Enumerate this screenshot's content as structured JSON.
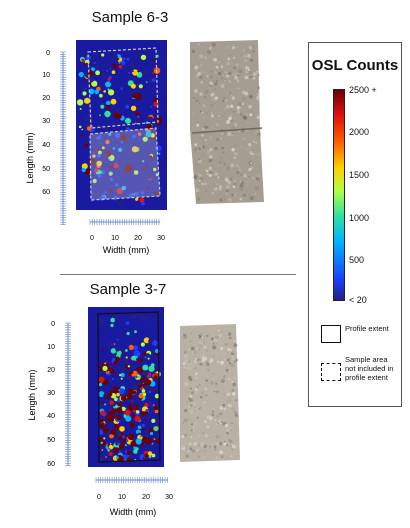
{
  "samples": [
    {
      "title": "Sample 6-3",
      "y_ticks": [
        "0",
        "10",
        "20",
        "30",
        "40",
        "50",
        "60"
      ],
      "x_ticks": [
        "0",
        "10",
        "20",
        "30"
      ],
      "ylabel": "Length (mm)",
      "xlabel": "Width (mm)"
    },
    {
      "title": "Sample 3-7",
      "y_ticks": [
        "0",
        "10",
        "20",
        "30",
        "40",
        "50",
        "60"
      ],
      "x_ticks": [
        "0",
        "10",
        "20",
        "30"
      ],
      "ylabel": "Length (mm)",
      "xlabel": "Width (mm)"
    }
  ],
  "legend": {
    "title": "OSL Counts",
    "ticks": [
      "2500 +",
      "2000",
      "1500",
      "1000",
      "500",
      "< 20"
    ],
    "key_solid_label": "Profile extent",
    "key_dashed_label": "Sample area not included in profile extent"
  },
  "colors": {
    "heatmap_bg": "#1a1aa0",
    "stone_6_3": "#a59d90",
    "stone_3_7": "#b9b2a4",
    "colorbar": [
      "#20208a",
      "#1a40ff",
      "#00b4ff",
      "#30e0a0",
      "#b0ff40",
      "#ffd000",
      "#ff6000",
      "#e01010",
      "#6a0000"
    ]
  }
}
